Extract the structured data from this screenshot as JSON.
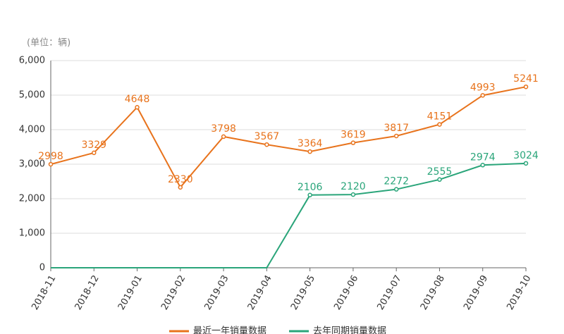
{
  "chart_data": {
    "type": "line",
    "unit_label": "(单位：辆)",
    "categories": [
      "2018-11",
      "2018-12",
      "2019-01",
      "2019-02",
      "2019-03",
      "2019-04",
      "2019-05",
      "2019-06",
      "2019-07",
      "2019-08",
      "2019-09",
      "2019-10"
    ],
    "series": [
      {
        "name": "最近一年销量数据",
        "color": "#e8731c",
        "values": [
          2998,
          3329,
          4648,
          2330,
          3798,
          3567,
          3364,
          3619,
          3817,
          4151,
          4993,
          5241
        ]
      },
      {
        "name": "去年同期销量数据",
        "color": "#2aa57a",
        "values": [
          0,
          0,
          0,
          0,
          0,
          0,
          2106,
          2120,
          2272,
          2555,
          2974,
          3024
        ]
      }
    ],
    "ylim": [
      0,
      6000
    ],
    "yticks": [
      0,
      {
        "value": 1000,
        "label": "1,000"
      },
      {
        "value": 2000,
        "label": "2,000"
      },
      {
        "value": 3000,
        "label": "3,000"
      },
      {
        "value": 4000,
        "label": "4,000"
      },
      {
        "value": 5000,
        "label": "5,000"
      },
      {
        "value": 6000,
        "label": "6,000"
      }
    ],
    "grid": true
  }
}
